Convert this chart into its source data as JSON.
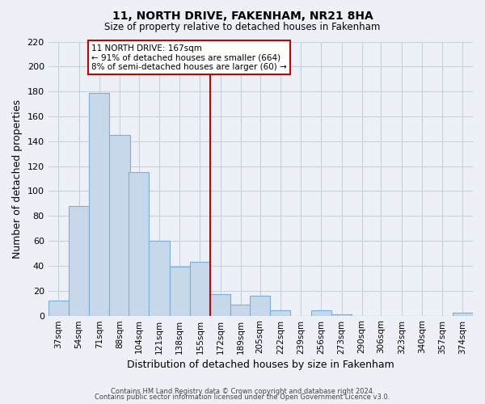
{
  "title": "11, NORTH DRIVE, FAKENHAM, NR21 8HA",
  "subtitle": "Size of property relative to detached houses in Fakenham",
  "xlabel": "Distribution of detached houses by size in Fakenham",
  "ylabel": "Number of detached properties",
  "bin_labels": [
    "37sqm",
    "54sqm",
    "71sqm",
    "88sqm",
    "104sqm",
    "121sqm",
    "138sqm",
    "155sqm",
    "172sqm",
    "189sqm",
    "205sqm",
    "222sqm",
    "239sqm",
    "256sqm",
    "273sqm",
    "290sqm",
    "306sqm",
    "323sqm",
    "340sqm",
    "357sqm",
    "374sqm"
  ],
  "bin_edges": [
    37,
    54,
    71,
    88,
    104,
    121,
    138,
    155,
    172,
    189,
    205,
    222,
    239,
    256,
    273,
    290,
    306,
    323,
    340,
    357,
    374
  ],
  "bar_heights": [
    12,
    88,
    179,
    145,
    115,
    60,
    39,
    43,
    17,
    9,
    16,
    4,
    0,
    4,
    1,
    0,
    0,
    0,
    0,
    0,
    2
  ],
  "bar_color": "#c8d8eb",
  "bar_edge_color": "#7aaed6",
  "grid_color": "#c8d0d8",
  "bg_color": "#edf1f7",
  "vline_color": "#cc0000",
  "annotation_title": "11 NORTH DRIVE: 167sqm",
  "annotation_line1": "← 91% of detached houses are smaller (664)",
  "annotation_line2": "8% of semi-detached houses are larger (60) →",
  "annotation_box_color": "#ffffff",
  "annotation_box_edge": "#cc0000",
  "ylim": [
    0,
    220
  ],
  "yticks": [
    0,
    20,
    40,
    60,
    80,
    100,
    120,
    140,
    160,
    180,
    200,
    220
  ],
  "footer1": "Contains HM Land Registry data © Crown copyright and database right 2024.",
  "footer2": "Contains public sector information licensed under the Open Government Licence v3.0."
}
